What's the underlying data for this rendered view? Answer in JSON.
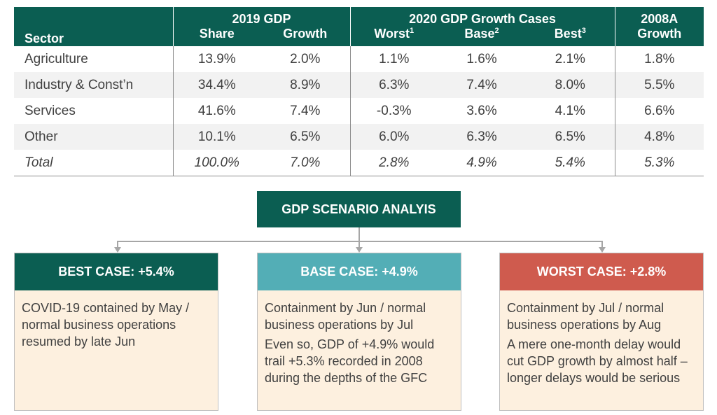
{
  "table": {
    "header": {
      "sector": "Sector",
      "gdp2019": "2019 GDP",
      "growth2020": "2020 GDP Growth Cases",
      "growth2008_line1": "2008A",
      "growth2008_line2": "Growth",
      "share": "Share",
      "growth": "Growth",
      "worst": "Worst",
      "worst_sup": "1",
      "base": "Base",
      "base_sup": "2",
      "best": "Best",
      "best_sup": "3"
    },
    "rows": [
      {
        "sector": "Agriculture",
        "share": "13.9%",
        "growth": "2.0%",
        "worst": "1.1%",
        "base": "1.6%",
        "best": "2.1%",
        "g2008": "1.8%"
      },
      {
        "sector": "Industry & Const’n",
        "share": "34.4%",
        "growth": "8.9%",
        "worst": "6.3%",
        "base": "7.4%",
        "best": "8.0%",
        "g2008": "5.5%"
      },
      {
        "sector": "Services",
        "share": "41.6%",
        "growth": "7.4%",
        "worst": "-0.3%",
        "base": "3.6%",
        "best": "4.1%",
        "g2008": "6.6%"
      },
      {
        "sector": "Other",
        "share": "10.1%",
        "growth": "6.5%",
        "worst": "6.0%",
        "base": "6.3%",
        "best": "6.5%",
        "g2008": "4.8%"
      },
      {
        "sector": "Total",
        "share": "100.0%",
        "growth": "7.0%",
        "worst": "2.8%",
        "base": "4.9%",
        "best": "5.4%",
        "g2008": "5.3%"
      }
    ]
  },
  "scenario": {
    "title": "GDP SCENARIO ANALYIS",
    "best": {
      "header": "BEST CASE: +5.4%",
      "lines": [
        "COVID-19 contained by May / normal business operations resumed by late Jun"
      ]
    },
    "base": {
      "header": "BASE CASE: +4.9%",
      "lines": [
        "Containment by Jun / normal business operations by Jul",
        "Even so, GDP of +4.9% would trail +5.3% recorded in 2008 during the depths of the GFC"
      ]
    },
    "worst": {
      "header": "WORST CASE: +2.8%",
      "lines": [
        "Containment by Jul / normal business operations by Aug",
        "A mere one-month delay would cut GDP growth by almost half – longer delays would be serious"
      ]
    }
  },
  "colors": {
    "dark_green": "#0b5e52",
    "teal": "#53aeb6",
    "red": "#cf5b4e",
    "cream": "#fdf0df"
  }
}
